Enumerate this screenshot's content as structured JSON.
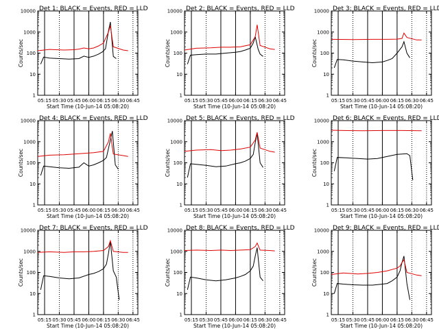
{
  "colors": {
    "events": "#000000",
    "lld": "#e00000",
    "axis": "#000000",
    "background": "#ffffff"
  },
  "chart_data": {
    "type": "line",
    "layout": "3x3 grid of detector panels",
    "y_scale": "log",
    "ylim": [
      1,
      10000
    ],
    "ytick_labels": [
      "1",
      "10",
      "100",
      "1000",
      "10000"
    ],
    "xlim": [
      "05:08",
      "06:50"
    ],
    "xtick_labels": [
      "05:15",
      "05:30",
      "05:45",
      "06:00",
      "06:15",
      "06:30",
      "06:45"
    ],
    "ylabel": "Counts/sec",
    "xlabel": "Start Time (10-Jun-14 05:08:20)",
    "series_legend": {
      "black": "Events",
      "red": "LLD"
    },
    "solid_markers": [
      "05:15",
      "05:45",
      "06:00",
      "06:15"
    ],
    "dotted_markers": [
      "05:30",
      "06:30",
      "06:45"
    ],
    "panels": [
      {
        "title": "Det 1: BLACK = Events, RED = LLD",
        "series": [
          {
            "color": "black",
            "x": [
              "05:11",
              "05:14",
              "05:20",
              "05:30",
              "05:40",
              "05:50",
              "05:55",
              "06:00",
              "06:05",
              "06:10",
              "06:14",
              "06:17",
              "06:20",
              "06:22",
              "06:25",
              "06:28"
            ],
            "values": [
              30,
              65,
              58,
              55,
              52,
              55,
              72,
              63,
              72,
              90,
              115,
              160,
              1100,
              3000,
              70,
              55
            ]
          },
          {
            "color": "red",
            "x": [
              "05:06",
              "05:20",
              "05:35",
              "05:45",
              "05:50",
              "05:55",
              "06:00",
              "06:05",
              "06:10",
              "06:15",
              "06:20",
              "06:22",
              "06:25",
              "06:35",
              "06:40"
            ],
            "values": [
              130,
              150,
              140,
              145,
              155,
              175,
              160,
              175,
              220,
              300,
              1000,
              2000,
              200,
              140,
              130
            ]
          }
        ]
      },
      {
        "title": "Det 2: BLACK = Events, RED = LLD",
        "series": [
          {
            "color": "black",
            "x": [
              "05:11",
              "05:14",
              "05:20",
              "05:30",
              "05:40",
              "05:50",
              "06:00",
              "06:05",
              "06:10",
              "06:15",
              "06:18",
              "06:20",
              "06:23",
              "06:25",
              "06:28"
            ],
            "values": [
              30,
              80,
              85,
              90,
              90,
              100,
              110,
              120,
              140,
              170,
              300,
              600,
              150,
              90,
              70
            ]
          },
          {
            "color": "red",
            "x": [
              "05:06",
              "05:20",
              "05:35",
              "05:45",
              "05:55",
              "06:05",
              "06:15",
              "06:20",
              "06:22",
              "06:25",
              "06:35",
              "06:40"
            ],
            "values": [
              140,
              170,
              180,
              190,
              190,
              200,
              250,
              600,
              2200,
              230,
              160,
              150
            ]
          }
        ]
      },
      {
        "title": "Det 3: BLACK = Events, RED = LLD",
        "series": [
          {
            "color": "black",
            "x": [
              "05:11",
              "05:14",
              "05:20",
              "05:30",
              "05:40",
              "05:50",
              "06:00",
              "06:05",
              "06:10",
              "06:15",
              "06:20",
              "06:22",
              "06:25",
              "06:28"
            ],
            "values": [
              20,
              50,
              48,
              42,
              38,
              35,
              38,
              45,
              55,
              100,
              200,
              350,
              100,
              60
            ]
          },
          {
            "color": "red",
            "x": [
              "05:06",
              "05:30",
              "05:50",
              "06:05",
              "06:15",
              "06:20",
              "06:22",
              "06:25",
              "06:35",
              "06:40"
            ],
            "values": [
              450,
              440,
              450,
              450,
              460,
              500,
              900,
              550,
              420,
              420
            ]
          }
        ]
      },
      {
        "title": "Det 4: BLACK = Events, RED = LLD",
        "series": [
          {
            "color": "black",
            "x": [
              "05:11",
              "05:14",
              "05:20",
              "05:30",
              "05:40",
              "05:50",
              "05:55",
              "06:00",
              "06:05",
              "06:10",
              "06:15",
              "06:18",
              "06:22",
              "06:24",
              "06:27",
              "06:30"
            ],
            "values": [
              25,
              70,
              65,
              58,
              55,
              62,
              100,
              70,
              80,
              100,
              130,
              180,
              1200,
              3200,
              80,
              50
            ]
          },
          {
            "color": "red",
            "x": [
              "05:06",
              "05:20",
              "05:35",
              "05:45",
              "05:55",
              "06:05",
              "06:15",
              "06:20",
              "06:22",
              "06:25",
              "06:35",
              "06:40"
            ],
            "values": [
              200,
              230,
              240,
              260,
              280,
              300,
              350,
              1000,
              2500,
              260,
              220,
              200
            ]
          }
        ]
      },
      {
        "title": "Det 5: BLACK = Events, RED = LLD",
        "series": [
          {
            "color": "black",
            "x": [
              "05:11",
              "05:14",
              "05:20",
              "05:30",
              "05:40",
              "05:50",
              "06:00",
              "06:05",
              "06:10",
              "06:15",
              "06:18",
              "06:20",
              "06:22",
              "06:25",
              "06:28"
            ],
            "values": [
              20,
              90,
              85,
              75,
              65,
              70,
              90,
              100,
              120,
              160,
              250,
              900,
              2500,
              100,
              60
            ]
          },
          {
            "color": "red",
            "x": [
              "05:06",
              "05:20",
              "05:35",
              "05:45",
              "05:55",
              "06:05",
              "06:15",
              "06:20",
              "06:22",
              "06:25",
              "06:35",
              "06:40"
            ],
            "values": [
              350,
              400,
              420,
              380,
              400,
              450,
              550,
              1200,
              2800,
              500,
              350,
              320
            ]
          }
        ]
      },
      {
        "title": "Det 6: BLACK = Events, RED = LLD",
        "series": [
          {
            "color": "black",
            "x": [
              "05:11",
              "05:14",
              "05:25",
              "05:35",
              "05:45",
              "05:55",
              "06:05",
              "06:15",
              "06:25",
              "06:28",
              "06:31"
            ],
            "values": [
              40,
              180,
              170,
              160,
              150,
              160,
              200,
              250,
              270,
              220,
              15
            ]
          },
          {
            "color": "red",
            "x": [
              "05:06",
              "05:20",
              "05:40",
              "06:00",
              "06:20",
              "06:40"
            ],
            "values": [
              3500,
              3400,
              3300,
              3400,
              3400,
              3300
            ]
          }
        ]
      },
      {
        "title": "Det 7: BLACK = Events, RED = LLD",
        "series": [
          {
            "color": "black",
            "x": [
              "05:11",
              "05:14",
              "05:20",
              "05:30",
              "05:40",
              "05:50",
              "06:00",
              "06:05",
              "06:10",
              "06:15",
              "06:18",
              "06:20",
              "06:22",
              "06:25",
              "06:28",
              "06:31"
            ],
            "values": [
              15,
              70,
              65,
              55,
              50,
              55,
              80,
              90,
              110,
              150,
              250,
              800,
              3000,
              120,
              60,
              5
            ]
          },
          {
            "color": "red",
            "x": [
              "05:06",
              "05:20",
              "05:35",
              "05:45",
              "05:55",
              "06:05",
              "06:15",
              "06:20",
              "06:22",
              "06:25",
              "06:35",
              "06:40"
            ],
            "values": [
              900,
              950,
              900,
              950,
              950,
              1000,
              1100,
              1700,
              3200,
              1000,
              900,
              900
            ]
          }
        ]
      },
      {
        "title": "Det 8: BLACK = Events, RED = LLD",
        "series": [
          {
            "color": "black",
            "x": [
              "05:11",
              "05:14",
              "05:20",
              "05:30",
              "05:40",
              "05:50",
              "06:00",
              "06:05",
              "06:10",
              "06:15",
              "06:18",
              "06:20",
              "06:22",
              "06:25",
              "06:28"
            ],
            "values": [
              15,
              60,
              55,
              45,
              40,
              45,
              55,
              65,
              80,
              120,
              200,
              600,
              1500,
              60,
              40
            ]
          },
          {
            "color": "red",
            "x": [
              "05:06",
              "05:20",
              "05:35",
              "05:45",
              "05:55",
              "06:05",
              "06:15",
              "06:20",
              "06:22",
              "06:25",
              "06:35",
              "06:40"
            ],
            "values": [
              1100,
              1150,
              1100,
              1150,
              1100,
              1150,
              1200,
              1700,
              2500,
              1150,
              1100,
              1050
            ]
          }
        ]
      },
      {
        "title": "Det 9: BLACK = Events, RED = LLD",
        "series": [
          {
            "color": "black",
            "x": [
              "05:11",
              "05:14",
              "05:20",
              "05:30",
              "05:40",
              "05:50",
              "06:00",
              "06:05",
              "06:10",
              "06:15",
              "06:18",
              "06:20",
              "06:22",
              "06:25",
              "06:28"
            ],
            "values": [
              10,
              30,
              28,
              26,
              25,
              25,
              28,
              30,
              40,
              60,
              120,
              300,
              600,
              30,
              5
            ]
          },
          {
            "color": "red",
            "x": [
              "05:06",
              "05:20",
              "05:35",
              "05:45",
              "05:55",
              "06:05",
              "06:15",
              "06:18",
              "06:20",
              "06:22",
              "06:25",
              "06:35",
              "06:40"
            ],
            "values": [
              80,
              95,
              85,
              90,
              100,
              120,
              160,
              200,
              300,
              400,
              100,
              75,
              70
            ]
          }
        ]
      }
    ]
  }
}
